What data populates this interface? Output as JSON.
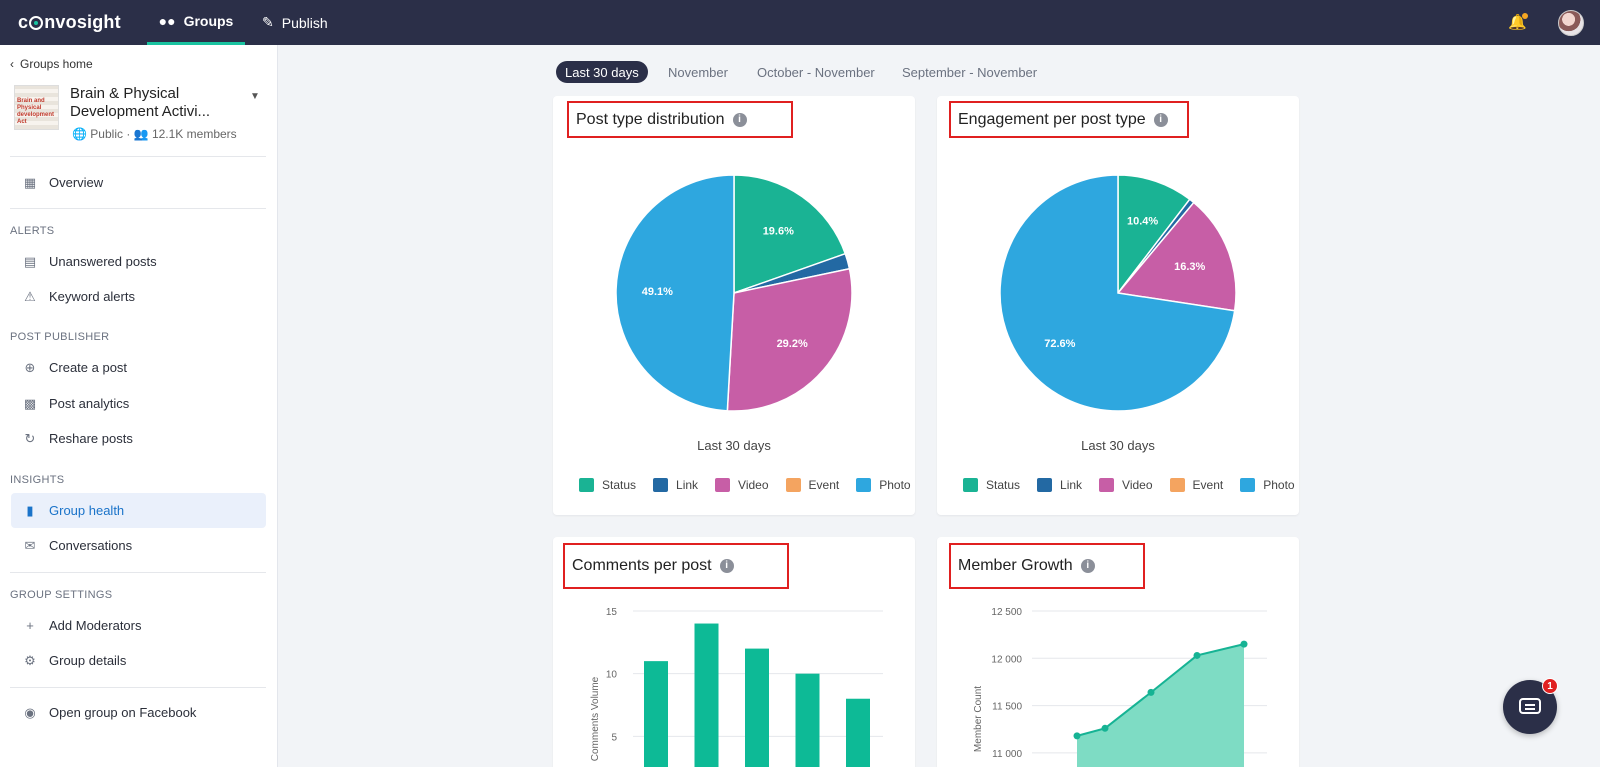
{
  "app": {
    "logo_text": "convosight"
  },
  "topnav": {
    "tabs": [
      {
        "label": "Groups",
        "icon": "groups-icon",
        "active": true
      },
      {
        "label": "Publish",
        "icon": "publish-icon",
        "active": false
      }
    ]
  },
  "sidebar": {
    "back_label": "Groups home",
    "group": {
      "name": "Brain & Physical Development Activi...",
      "thumb_text": "Brain and Physical development Act",
      "privacy": "Public",
      "members": "12.1K members"
    },
    "overview": "Overview",
    "sections": [
      {
        "title": "ALERTS",
        "items": [
          "Unanswered posts",
          "Keyword alerts"
        ]
      },
      {
        "title": "POST PUBLISHER",
        "items": [
          "Create a post",
          "Post analytics",
          "Reshare posts"
        ]
      },
      {
        "title": "INSIGHTS",
        "items": [
          "Group health",
          "Conversations"
        ]
      },
      {
        "title": "GROUP SETTINGS",
        "items": [
          "Add Moderators",
          "Group details"
        ]
      }
    ],
    "active_item": "Group health",
    "footer_link": "Open group on Facebook"
  },
  "date_tabs": [
    "Last 30 days",
    "November",
    "October - November",
    "September - November"
  ],
  "active_date_tab": "Last 30 days",
  "colors": {
    "status": "#1ab394",
    "link": "#2369a3",
    "video": "#c75ea6",
    "event": "#f4a460",
    "photo": "#2ea7df",
    "bar": "#0dba96",
    "area_fill": "#7edcc4",
    "area_line": "#16b394",
    "highlight_border": "#e02020"
  },
  "legend_labels": [
    "Status",
    "Link",
    "Video",
    "Event",
    "Photo"
  ],
  "cards": {
    "post_type": {
      "title": "Post type distribution",
      "subtitle": "Last 30 days"
    },
    "engagement": {
      "title": "Engagement per post type",
      "subtitle": "Last 30 days"
    },
    "comments": {
      "title": "Comments per post"
    },
    "member_growth": {
      "title": "Member Growth"
    }
  },
  "chart_data": [
    {
      "type": "pie",
      "title": "Post type distribution",
      "subtitle": "Last 30 days",
      "labels": [
        "Status",
        "Link",
        "Video",
        "Event",
        "Photo"
      ],
      "values": [
        19.6,
        2.1,
        29.2,
        0,
        49.1
      ],
      "data_labels": [
        "19.6%",
        "",
        "29.2%",
        "",
        "49.1%"
      ]
    },
    {
      "type": "pie",
      "title": "Engagement per post type",
      "subtitle": "Last 30 days",
      "labels": [
        "Status",
        "Link",
        "Video",
        "Event",
        "Photo"
      ],
      "values": [
        10.4,
        0.7,
        16.3,
        0,
        72.6
      ],
      "data_labels": [
        "10.4%",
        "",
        "16.3%",
        "",
        "72.6%"
      ]
    },
    {
      "type": "bar",
      "title": "Comments per post",
      "ylabel": "Comments Volume",
      "y_ticks": [
        5,
        10,
        15
      ],
      "ylim": [
        0,
        15
      ],
      "values": [
        11,
        14,
        12,
        10,
        8
      ]
    },
    {
      "type": "area",
      "title": "Member Growth",
      "ylabel": "Member Count",
      "y_ticks": [
        "11 000",
        "11 500",
        "12 000",
        "12 500"
      ],
      "ylim": [
        11000,
        12500
      ],
      "values": [
        11180,
        11260,
        11640,
        12030,
        12150
      ]
    }
  ],
  "notifications": {
    "chat_badge": "1"
  }
}
